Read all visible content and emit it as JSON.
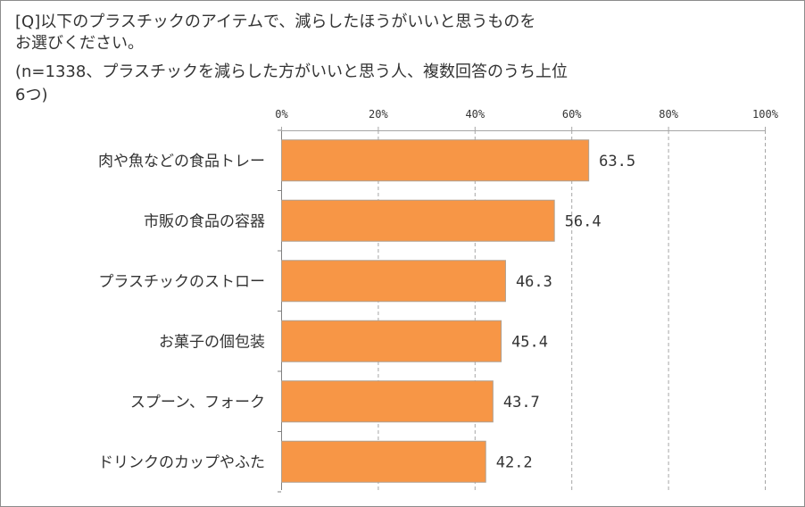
{
  "question": {
    "line1": "[Q]以下のプラスチックのアイテムで、減らしたほうがいいと思うものを",
    "line2": "お選びください。",
    "line3": "(n=1338、プラスチックを減らした方がいいと思う人、複数回答のうち上位",
    "line4": "6つ)"
  },
  "chart_data": {
    "type": "bar",
    "orientation": "horizontal",
    "categories": [
      "肉や魚などの食品トレー",
      "市販の食品の容器",
      "プラスチックのストロー",
      "お菓子の個包装",
      "スプーン、フォーク",
      "ドリンクのカップやふた"
    ],
    "values": [
      63.5,
      56.4,
      46.3,
      45.4,
      43.7,
      42.2
    ],
    "value_labels": [
      "63.5",
      "56.4",
      "46.3",
      "45.4",
      "43.7",
      "42.2"
    ],
    "tick_labels": [
      "0%",
      "20%",
      "40%",
      "60%",
      "80%",
      "100%"
    ],
    "ticks": [
      0,
      20,
      40,
      60,
      80,
      100
    ],
    "xlim": [
      0,
      100
    ],
    "grid": true,
    "grid_style": "dashed",
    "axis_position": "top",
    "bar_color": "#f79646",
    "bar_border_color": "#b0a090",
    "grid_color": "#a6a6a6"
  }
}
